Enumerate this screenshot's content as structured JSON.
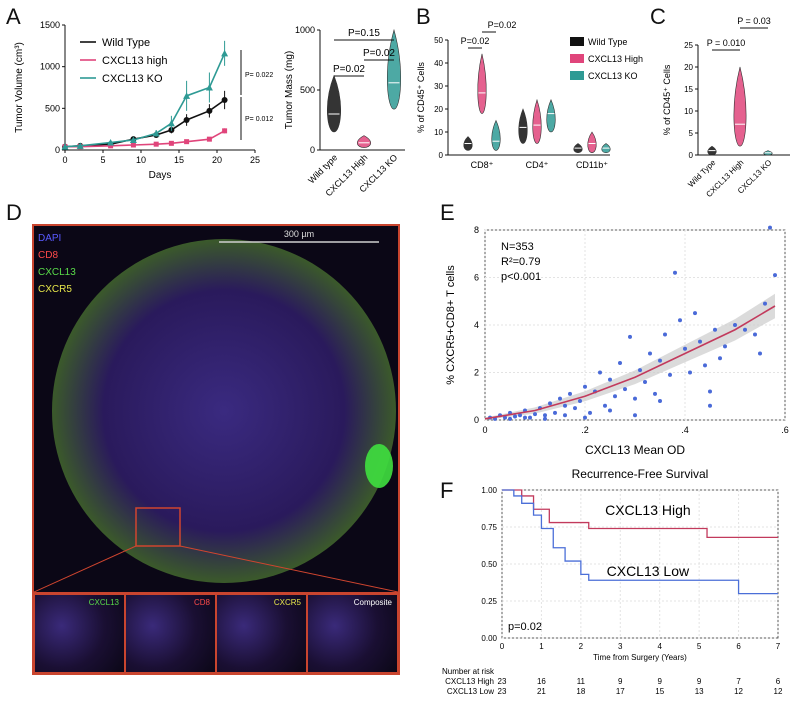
{
  "panel_labels": {
    "A": "A",
    "B": "B",
    "C": "C",
    "D": "D",
    "E": "E",
    "F": "F"
  },
  "colors": {
    "wild_type": "#111111",
    "high": "#e0457b",
    "ko": "#2e9a94",
    "low_line": "#4b6fd8",
    "high_line": "#c23a5c",
    "scatter": "#4a6ad8",
    "border": "#c9452f"
  },
  "chart_data": [
    {
      "id": "A-line",
      "type": "line",
      "ylabel": "Tumor Volume (cm³)",
      "xlabel": "Days",
      "xlim": [
        0,
        25
      ],
      "ylim": [
        0,
        1500
      ],
      "xticks": [
        "0",
        "5",
        "10",
        "15",
        "20",
        "25"
      ],
      "yticks": [
        "0",
        "500",
        "1000",
        "1500"
      ],
      "series": [
        {
          "name": "Wild Type",
          "x": [
            0,
            2,
            6,
            9,
            12,
            14,
            16,
            19,
            21
          ],
          "y": [
            40,
            50,
            70,
            130,
            180,
            240,
            360,
            470,
            600
          ],
          "err": [
            0,
            0,
            10,
            15,
            20,
            40,
            70,
            80,
            110
          ]
        },
        {
          "name": "CXCL13 high",
          "x": [
            0,
            2,
            6,
            9,
            12,
            14,
            16,
            19,
            21
          ],
          "y": [
            40,
            40,
            50,
            60,
            70,
            80,
            100,
            130,
            230
          ],
          "err": [
            0,
            0,
            5,
            5,
            10,
            10,
            15,
            20,
            30
          ]
        },
        {
          "name": "CXCL13 KO",
          "x": [
            0,
            2,
            6,
            9,
            12,
            14,
            16,
            19,
            21
          ],
          "y": [
            40,
            50,
            90,
            120,
            200,
            320,
            650,
            750,
            1160
          ],
          "err": [
            0,
            0,
            15,
            20,
            40,
            90,
            180,
            180,
            150
          ]
        }
      ],
      "pvalues": [
        "P= 0.022",
        "P= 0.012"
      ]
    },
    {
      "id": "A-violin",
      "type": "violin",
      "ylabel": "Tumor Mass (mg)",
      "ylim": [
        0,
        1000
      ],
      "yticks": [
        "0",
        "500",
        "1000"
      ],
      "categories": [
        "Wild type",
        "CXCL13 High",
        "CXCL13 KO"
      ],
      "median": [
        300,
        60,
        560
      ],
      "range": [
        [
          150,
          620
        ],
        [
          20,
          120
        ],
        [
          340,
          1000
        ]
      ],
      "pvalues": [
        "P=0.15",
        "P=0.02",
        "P=0.02"
      ]
    },
    {
      "id": "B",
      "type": "violin",
      "ylabel": "% of CD45⁺ Cells",
      "ylim": [
        0,
        50
      ],
      "yticks": [
        "0",
        "10",
        "20",
        "30",
        "40",
        "50"
      ],
      "categories": [
        "CD8⁺",
        "CD4⁺",
        "CD11b⁺"
      ],
      "legend": [
        "Wild Type",
        "CXCL13 High",
        "CXCL13 KO"
      ],
      "series": [
        {
          "name": "Wild Type",
          "median": [
            5,
            12,
            3
          ],
          "range": [
            [
              2,
              8
            ],
            [
              5,
              20
            ],
            [
              1,
              5
            ]
          ]
        },
        {
          "name": "CXCL13 High",
          "median": [
            27,
            13,
            5
          ],
          "range": [
            [
              18,
              44
            ],
            [
              5,
              24
            ],
            [
              1,
              10
            ]
          ]
        },
        {
          "name": "CXCL13 KO",
          "median": [
            6,
            18,
            3
          ],
          "range": [
            [
              2,
              15
            ],
            [
              10,
              24
            ],
            [
              1,
              5
            ]
          ]
        }
      ],
      "pvalues": [
        "P=0.02",
        "P=0.02"
      ]
    },
    {
      "id": "C",
      "type": "violin",
      "ylabel": "% of CD45⁺ Cells",
      "ylim": [
        0,
        25
      ],
      "yticks": [
        "0",
        "5",
        "10",
        "15",
        "20",
        "25"
      ],
      "categories": [
        "Wild Type",
        "CXCL13 High",
        "CXCL13 KO"
      ],
      "median": [
        1,
        7,
        0.5
      ],
      "range": [
        [
          0,
          2
        ],
        [
          2,
          20
        ],
        [
          0,
          1
        ]
      ],
      "pvalues": [
        "P = 0.010",
        "P = 0.03"
      ]
    },
    {
      "id": "E",
      "type": "scatter",
      "ylabel": "% CXCR5+CD8+ T cells",
      "xlabel": "CXCL13 Mean OD",
      "xlim": [
        0,
        0.6
      ],
      "ylim": [
        0,
        8
      ],
      "xticks": [
        "0",
        ".2",
        ".4",
        ".6"
      ],
      "yticks": [
        "0",
        "2",
        "4",
        "6",
        "8"
      ],
      "annotation": [
        "N=353",
        "R²=0.79",
        "p<0.001"
      ],
      "points": [
        [
          0.01,
          0.1
        ],
        [
          0.02,
          0.05
        ],
        [
          0.03,
          0.2
        ],
        [
          0.04,
          0.1
        ],
        [
          0.05,
          0.3
        ],
        [
          0.06,
          0.15
        ],
        [
          0.07,
          0.2
        ],
        [
          0.08,
          0.4
        ],
        [
          0.09,
          0.1
        ],
        [
          0.1,
          0.25
        ],
        [
          0.11,
          0.5
        ],
        [
          0.12,
          0.2
        ],
        [
          0.13,
          0.7
        ],
        [
          0.14,
          0.3
        ],
        [
          0.15,
          0.9
        ],
        [
          0.16,
          0.2
        ],
        [
          0.17,
          1.1
        ],
        [
          0.18,
          0.5
        ],
        [
          0.19,
          0.8
        ],
        [
          0.2,
          1.4
        ],
        [
          0.21,
          0.3
        ],
        [
          0.22,
          1.2
        ],
        [
          0.23,
          2.0
        ],
        [
          0.24,
          0.6
        ],
        [
          0.25,
          1.7
        ],
        [
          0.26,
          1.0
        ],
        [
          0.27,
          2.4
        ],
        [
          0.28,
          1.3
        ],
        [
          0.29,
          3.5
        ],
        [
          0.3,
          0.9
        ],
        [
          0.31,
          2.1
        ],
        [
          0.32,
          1.6
        ],
        [
          0.33,
          2.8
        ],
        [
          0.34,
          1.1
        ],
        [
          0.35,
          2.5
        ],
        [
          0.36,
          3.6
        ],
        [
          0.37,
          1.9
        ],
        [
          0.38,
          6.2
        ],
        [
          0.39,
          4.2
        ],
        [
          0.4,
          3.0
        ],
        [
          0.41,
          2.0
        ],
        [
          0.42,
          4.5
        ],
        [
          0.43,
          3.3
        ],
        [
          0.44,
          2.3
        ],
        [
          0.45,
          0.6
        ],
        [
          0.46,
          3.8
        ],
        [
          0.47,
          2.6
        ],
        [
          0.48,
          3.1
        ],
        [
          0.5,
          4.0
        ],
        [
          0.52,
          3.8
        ],
        [
          0.54,
          3.6
        ],
        [
          0.55,
          2.8
        ],
        [
          0.56,
          4.9
        ],
        [
          0.57,
          8.1
        ],
        [
          0.58,
          6.1
        ],
        [
          0.05,
          0.05
        ],
        [
          0.08,
          0.1
        ],
        [
          0.12,
          0.05
        ],
        [
          0.16,
          0.6
        ],
        [
          0.2,
          0.1
        ],
        [
          0.25,
          0.4
        ],
        [
          0.3,
          0.2
        ],
        [
          0.35,
          0.8
        ],
        [
          0.45,
          1.2
        ]
      ],
      "fit": [
        [
          0,
          0.05
        ],
        [
          0.1,
          0.4
        ],
        [
          0.2,
          1.0
        ],
        [
          0.3,
          1.8
        ],
        [
          0.4,
          2.8
        ],
        [
          0.5,
          3.8
        ],
        [
          0.58,
          4.8
        ]
      ]
    },
    {
      "id": "F",
      "type": "line",
      "title": "Recurrence-Free Survival",
      "xlabel": "Time from Surgery (Years)",
      "xlim": [
        0,
        7
      ],
      "ylim": [
        0,
        1
      ],
      "xticks": [
        "0",
        "1",
        "2",
        "3",
        "4",
        "5",
        "6",
        "7"
      ],
      "yticks": [
        "0.00",
        "0.25",
        "0.50",
        "0.75",
        "1.00"
      ],
      "series": [
        {
          "name": "CXCL13 High",
          "x": [
            0,
            0.5,
            0.8,
            1.2,
            2.2,
            5.2,
            7
          ],
          "y": [
            1.0,
            0.96,
            0.87,
            0.78,
            0.74,
            0.68,
            0.68
          ]
        },
        {
          "name": "CXCL13 Low",
          "x": [
            0,
            0.3,
            0.5,
            0.8,
            1.0,
            1.3,
            1.6,
            2.0,
            2.2,
            6.0,
            7
          ],
          "y": [
            1.0,
            0.96,
            0.91,
            0.83,
            0.74,
            0.61,
            0.52,
            0.43,
            0.39,
            0.3,
            0.3
          ]
        }
      ],
      "pvalue": "p=0.02",
      "risk_title": "Number at risk",
      "risk": [
        {
          "name": "CXCL13 High",
          "values": [
            "23",
            "16",
            "11",
            "9",
            "9",
            "9",
            "7",
            "6"
          ]
        },
        {
          "name": "CXCL13 Low",
          "values": [
            "23",
            "21",
            "18",
            "17",
            "15",
            "13",
            "12",
            "12"
          ]
        }
      ]
    }
  ],
  "micro": {
    "legend": [
      "DAPI",
      "CD8",
      "CXCL13",
      "CXCR5"
    ],
    "scale": "300 µm",
    "tiles": [
      "CXCL13",
      "CD8",
      "CXCR5",
      "Composite"
    ]
  }
}
